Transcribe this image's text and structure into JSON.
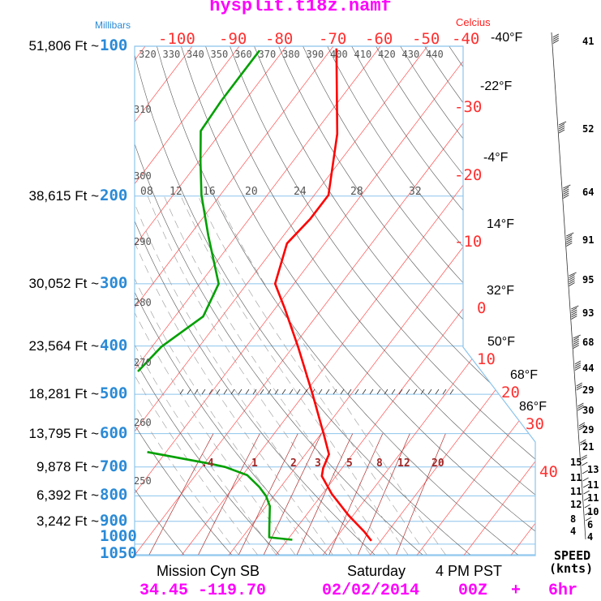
{
  "title": "hysplit.t18z.namf",
  "left_axis_label": "Millibars",
  "right_axis_label": "Celcius",
  "pressure_levels": [
    {
      "height": "51,806 Ft ~",
      "p": "100"
    },
    {
      "height": "38,615 Ft ~",
      "p": "200"
    },
    {
      "height": "30,052 Ft ~",
      "p": "300"
    },
    {
      "height": "23,564 Ft ~",
      "p": "400"
    },
    {
      "height": "18,281 Ft ~",
      "p": "500"
    },
    {
      "height": "13,795 Ft ~",
      "p": "600"
    },
    {
      "height": "9,878 Ft ~",
      "p": "700"
    },
    {
      "height": "6,392 Ft ~",
      "p": "800"
    },
    {
      "height": "3,242 Ft ~",
      "p": "900"
    },
    {
      "height": "",
      "p": "1000"
    },
    {
      "height": "",
      "p": "1050"
    }
  ],
  "top_temp_labels": [
    "-100",
    "-90",
    "-80",
    "-70",
    "-60",
    "-50",
    "-40"
  ],
  "right_temp_labels": [
    "-30",
    "-20",
    "-10",
    "0",
    "10",
    "20",
    "30",
    "40"
  ],
  "fahrenheit_labels": [
    "-40°F",
    "-22°F",
    "-4°F",
    "14°F",
    "32°F",
    "50°F",
    "68°F",
    "86°F"
  ],
  "theta_top_labels": [
    "320",
    "330",
    "340",
    "350",
    "360",
    "370",
    "380",
    "390",
    "400",
    "410",
    "420",
    "430",
    "440"
  ],
  "theta_left_labels": [
    "310",
    "300",
    "290",
    "280",
    "270",
    "260",
    "250"
  ],
  "moist_labels_200": [
    "08",
    "12",
    "16",
    "20",
    "24",
    "28",
    "32"
  ],
  "mixing_ratio_labels": [
    ".4",
    "1",
    "2",
    "3",
    "5",
    "8",
    "12",
    "20"
  ],
  "wind_speeds": [
    "41",
    "52",
    "64",
    "91",
    "95",
    "93",
    "68",
    "44",
    "29",
    "30",
    "29",
    "21",
    "15",
    "13",
    "11",
    "11",
    "11",
    "11",
    "12",
    "10",
    "8",
    "6",
    "4",
    "4"
  ],
  "speed_label": "SPEED",
  "speed_unit": "(knts)",
  "footer": {
    "station": "Mission Cyn SB",
    "day": "Saturday",
    "time": "4 PM PST",
    "latlon": "34.45 -119.70",
    "date": "02/02/2014",
    "cycle": "00Z",
    "plus": "+",
    "forecast": "6hr"
  },
  "colors": {
    "temperature": "#ff0000",
    "dewpoint": "#00a000",
    "isobar": "#8cc4ec",
    "isotherm": "#ff5050",
    "adiabat": "#555555",
    "accent": "#ff00ff",
    "pressure_label": "#2a8ad6"
  },
  "chart_data": {
    "type": "line",
    "title": "hysplit.t18z.namf",
    "xlabel": "Celcius",
    "ylabel": "Millibars",
    "plot": "skew-T log-p",
    "ylim": [
      1050,
      100
    ],
    "xlim_top": [
      -100,
      -40
    ],
    "series": [
      {
        "name": "temperature",
        "points": [
          [
            101,
            -69
          ],
          [
            150,
            -55
          ],
          [
            199,
            -47
          ],
          [
            222,
            -47
          ],
          [
            249,
            -48
          ],
          [
            300,
            -44
          ],
          [
            336,
            -38
          ],
          [
            401,
            -29
          ],
          [
            502,
            -18
          ],
          [
            606,
            -9
          ],
          [
            660,
            -5
          ],
          [
            704,
            -4
          ],
          [
            730,
            -3
          ],
          [
            793,
            2
          ],
          [
            875,
            9
          ],
          [
            944,
            15
          ],
          [
            985,
            18
          ]
        ]
      },
      {
        "name": "dewpoint",
        "points": [
          [
            102,
            -85
          ],
          [
            113,
            -85
          ],
          [
            129,
            -85
          ],
          [
            148,
            -84.5
          ],
          [
            171,
            -79.5
          ],
          [
            199,
            -74
          ],
          [
            240,
            -66
          ],
          [
            300,
            -56
          ],
          [
            349,
            -54
          ],
          [
            401,
            -58
          ],
          [
            450,
            -59
          ],
          null,
          [
            653,
            -44
          ],
          [
            690,
            -28.6
          ],
          [
            700,
            -25
          ],
          [
            727,
            -19
          ],
          [
            768,
            -14.5
          ],
          [
            801,
            -11.6
          ],
          [
            839,
            -9.2
          ],
          [
            922,
            -6
          ],
          [
            969,
            -4.3
          ],
          [
            980,
            1
          ]
        ]
      }
    ]
  }
}
